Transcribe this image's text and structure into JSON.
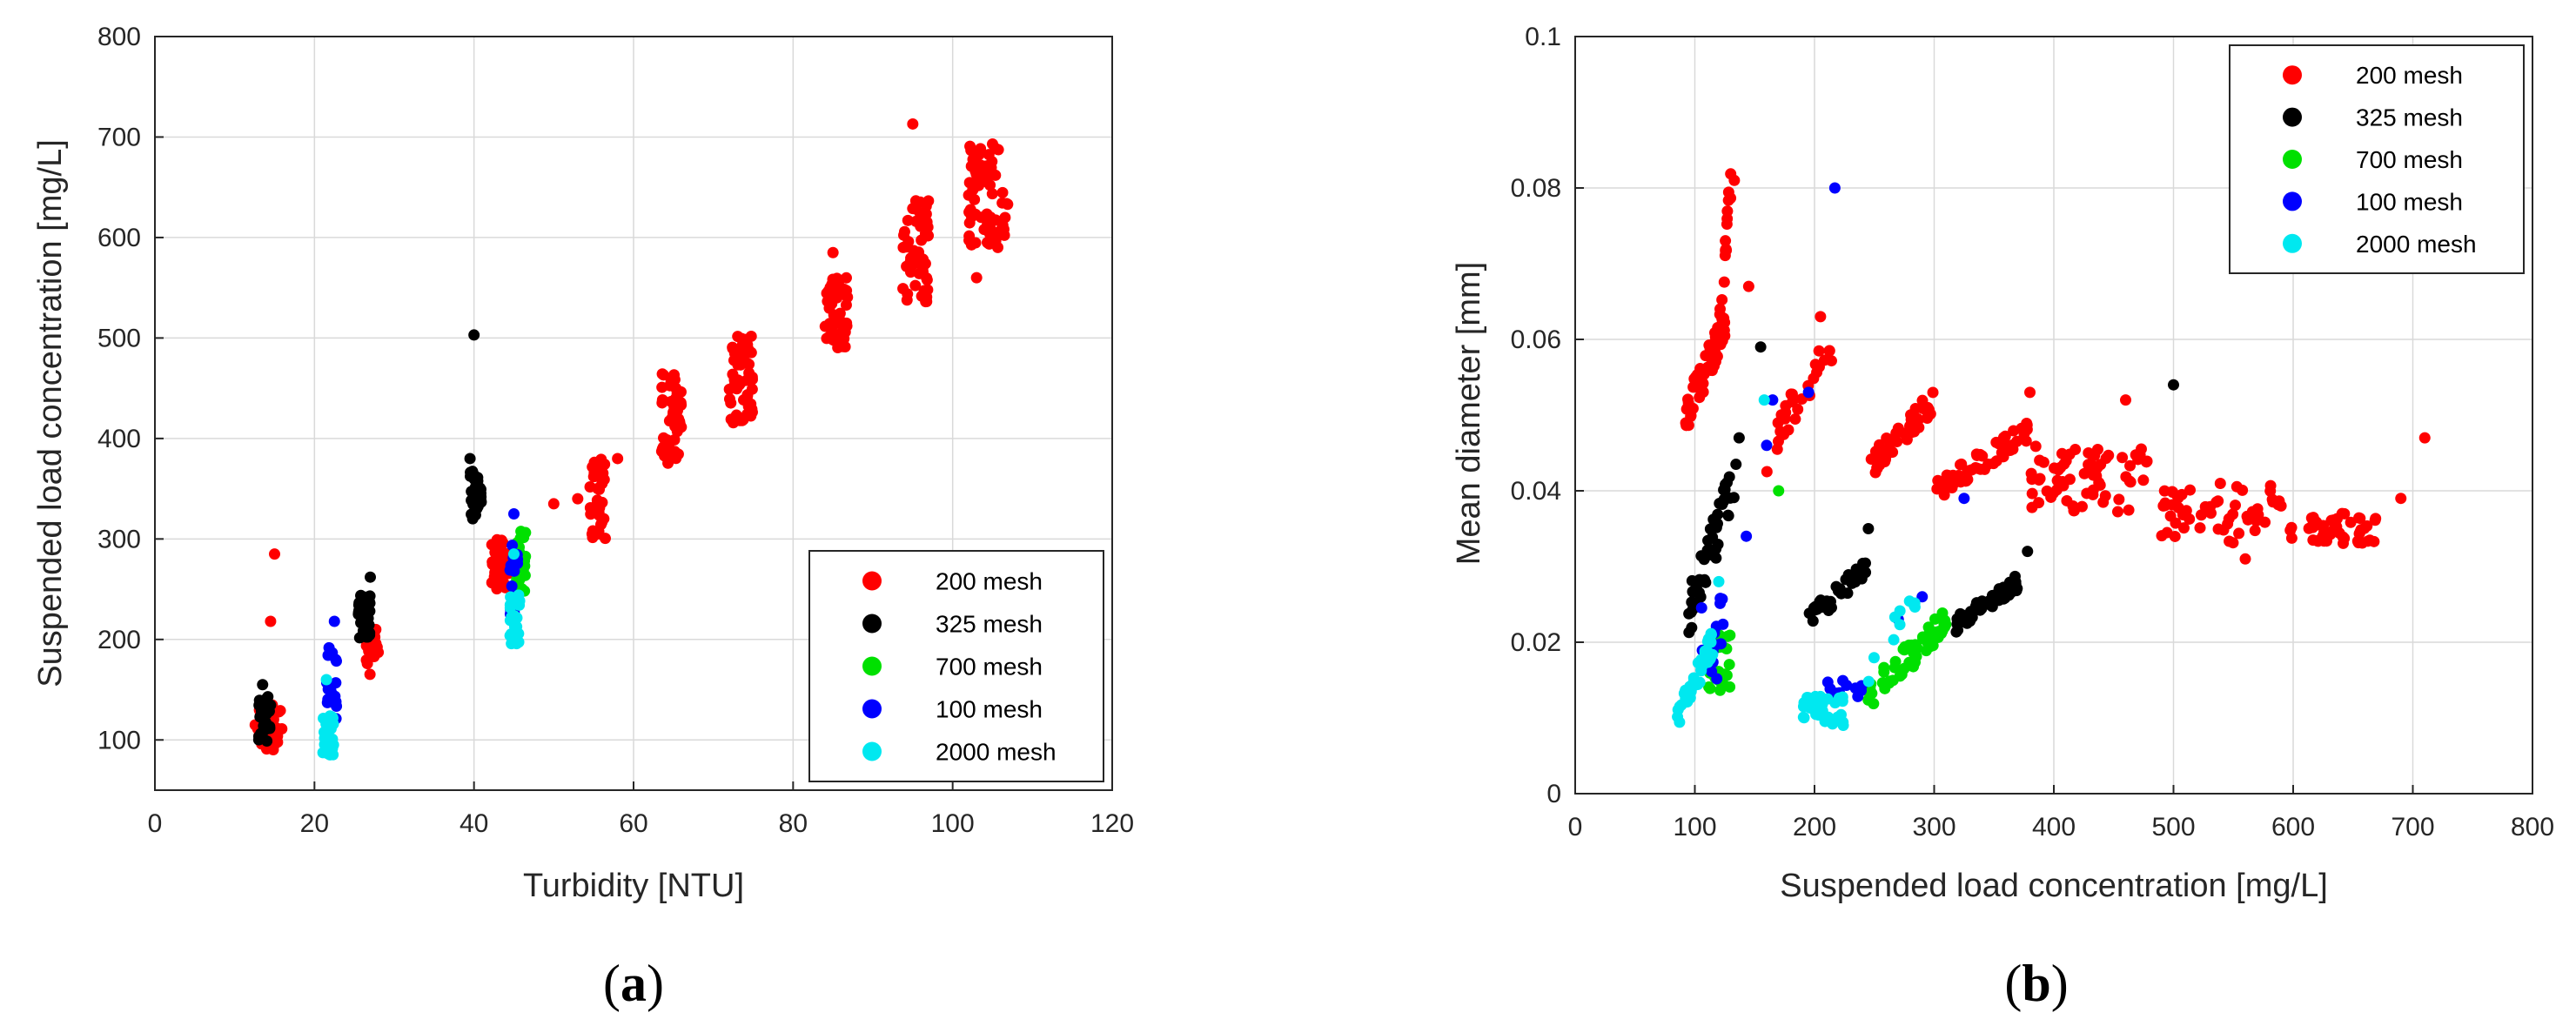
{
  "chart_data": [
    {
      "type": "scatter",
      "panel": "a",
      "caption_open": "(",
      "caption_letter": "a",
      "caption_close": ")",
      "xlabel": "Turbidity [NTU]",
      "ylabel": "Suspended load concentration [mg/L]",
      "xlim": [
        0,
        120
      ],
      "ylim": [
        50,
        800
      ],
      "xticks": [
        0,
        20,
        40,
        60,
        80,
        100,
        120
      ],
      "yticks": [
        100,
        200,
        300,
        400,
        500,
        600,
        700,
        800
      ],
      "grid": true,
      "legend_position": "bottom-right",
      "series": [
        {
          "name": "200 mesh",
          "color": "#ff0000",
          "clusters": [
            {
              "x": [
                12.5,
                16
              ],
              "y": [
                90,
                135
              ],
              "n": 40
            },
            {
              "x": [
                26.5,
                28
              ],
              "y": [
                165,
                210
              ],
              "n": 25
            },
            {
              "x": [
                42,
                44.5
              ],
              "y": [
                250,
                300
              ],
              "n": 35
            },
            {
              "x": [
                54.5,
                56.5
              ],
              "y": [
                298,
                380
              ],
              "n": 40
            },
            {
              "x": [
                63.5,
                66
              ],
              "y": [
                375,
                465
              ],
              "n": 50
            },
            {
              "x": [
                72,
                75
              ],
              "y": [
                415,
                505
              ],
              "n": 55
            },
            {
              "x": [
                84,
                87
              ],
              "y": [
                490,
                560
              ],
              "n": 50
            },
            {
              "x": [
                93.5,
                97
              ],
              "y": [
                535,
                640
              ],
              "n": 55
            },
            {
              "x": [
                102,
                107
              ],
              "y": [
                590,
                700
              ],
              "n": 70
            }
          ],
          "points": [
            [
              15,
              285
            ],
            [
              14.5,
              218
            ],
            [
              50,
              335
            ],
            [
              53,
              340
            ],
            [
              58,
              380
            ],
            [
              95,
              713
            ],
            [
              85,
              585
            ],
            [
              103,
              560
            ]
          ]
        },
        {
          "name": "325 mesh",
          "color": "#000000",
          "clusters": [
            {
              "x": [
                13,
                14.5
              ],
              "y": [
                98,
                145
              ],
              "n": 30
            },
            {
              "x": [
                25.5,
                27
              ],
              "y": [
                200,
                245
              ],
              "n": 40
            },
            {
              "x": [
                39.5,
                41
              ],
              "y": [
                320,
                370
              ],
              "n": 35
            }
          ],
          "points": [
            [
              13.5,
              155
            ],
            [
              27,
              262
            ],
            [
              40,
              503
            ],
            [
              39.5,
              380
            ]
          ]
        },
        {
          "name": "700 mesh",
          "color": "#00e000",
          "clusters": [
            {
              "x": [
                45,
                46.5
              ],
              "y": [
                245,
                310
              ],
              "n": 30
            }
          ],
          "points": []
        },
        {
          "name": "100 mesh",
          "color": "#0000ff",
          "clusters": [
            {
              "x": [
                21.5,
                22.8
              ],
              "y": [
                115,
                195
              ],
              "n": 18
            },
            {
              "x": [
                44.5,
                45.5
              ],
              "y": [
                220,
                300
              ],
              "n": 15
            }
          ],
          "points": [
            [
              22.5,
              218
            ],
            [
              45,
              325
            ]
          ]
        },
        {
          "name": "2000 mesh",
          "color": "#00e8f0",
          "clusters": [
            {
              "x": [
                21,
                22.5
              ],
              "y": [
                85,
                125
              ],
              "n": 30
            },
            {
              "x": [
                44.5,
                45.8
              ],
              "y": [
                195,
                245
              ],
              "n": 25
            }
          ],
          "points": [
            [
              21.5,
              160
            ],
            [
              45,
              285
            ]
          ]
        }
      ]
    },
    {
      "type": "scatter",
      "panel": "b",
      "caption_open": "(",
      "caption_letter": "b",
      "caption_close": ")",
      "xlabel": "Suspended load concentration [mg/L]",
      "ylabel": "Mean diameter [mm]",
      "xlim": [
        0,
        800
      ],
      "ylim": [
        0,
        0.1
      ],
      "xticks": [
        0,
        100,
        200,
        300,
        400,
        500,
        600,
        700,
        800
      ],
      "yticks": [
        0,
        0.02,
        0.04,
        0.06,
        0.08,
        0.1
      ],
      "grid": true,
      "legend_position": "top-right",
      "series": [
        {
          "name": "200 mesh",
          "color": "#ff0000",
          "clusters": [
            {
              "x": [
                90,
                125
              ],
              "y": [
                0.049,
                0.062
              ],
              "n": 70,
              "slope": true
            },
            {
              "x": [
                120,
                130
              ],
              "y": [
                0.062,
                0.08
              ],
              "n": 18,
              "slope": true
            },
            {
              "x": [
                160,
                215
              ],
              "y": [
                0.045,
                0.06
              ],
              "n": 30,
              "slope": true
            },
            {
              "x": [
                245,
                300
              ],
              "y": [
                0.043,
                0.052
              ],
              "n": 45,
              "slope": true
            },
            {
              "x": [
                300,
                380
              ],
              "y": [
                0.04,
                0.048
              ],
              "n": 60,
              "slope": true
            },
            {
              "x": [
                380,
                480
              ],
              "y": [
                0.037,
                0.046
              ],
              "n": 70
            },
            {
              "x": [
                490,
                600
              ],
              "y": [
                0.033,
                0.041
              ],
              "n": 60
            },
            {
              "x": [
                610,
                670
              ],
              "y": [
                0.033,
                0.037
              ],
              "n": 45
            }
          ],
          "points": [
            [
              133,
              0.081
            ],
            [
              205,
              0.063
            ],
            [
              145,
              0.067
            ],
            [
              710,
              0.047
            ],
            [
              690,
              0.039
            ],
            [
              460,
              0.052
            ],
            [
              560,
              0.031
            ],
            [
              380,
              0.053
            ]
          ]
        },
        {
          "name": "325 mesh",
          "color": "#000000",
          "clusters": [
            {
              "x": [
                95,
                135
              ],
              "y": [
                0.024,
                0.042
              ],
              "n": 45,
              "slope": true
            },
            {
              "x": [
                195,
                245
              ],
              "y": [
                0.023,
                0.03
              ],
              "n": 35,
              "slope": true
            },
            {
              "x": [
                315,
                370
              ],
              "y": [
                0.022,
                0.028
              ],
              "n": 45,
              "slope": true
            }
          ],
          "points": [
            [
              500,
              0.054
            ],
            [
              155,
              0.059
            ],
            [
              137,
              0.047
            ],
            [
              245,
              0.035
            ],
            [
              378,
              0.032
            ]
          ]
        },
        {
          "name": "700 mesh",
          "color": "#00e000",
          "clusters": [
            {
              "x": [
                110,
                130
              ],
              "y": [
                0.013,
                0.021
              ],
              "n": 30
            },
            {
              "x": [
                240,
                310
              ],
              "y": [
                0.012,
                0.023
              ],
              "n": 60,
              "slope": true
            }
          ],
          "points": [
            [
              170,
              0.04
            ]
          ]
        },
        {
          "name": "100 mesh",
          "color": "#0000ff",
          "clusters": [
            {
              "x": [
                105,
                125
              ],
              "y": [
                0.014,
                0.027
              ],
              "n": 15
            },
            {
              "x": [
                210,
                240
              ],
              "y": [
                0.012,
                0.015
              ],
              "n": 12
            }
          ],
          "points": [
            [
              217,
              0.08
            ],
            [
              165,
              0.052
            ],
            [
              195,
              0.053
            ],
            [
              160,
              0.046
            ],
            [
              143,
              0.034
            ],
            [
              325,
              0.039
            ],
            [
              290,
              0.026
            ],
            [
              270,
              0.023
            ]
          ]
        },
        {
          "name": "2000 mesh",
          "color": "#00e8f0",
          "clusters": [
            {
              "x": [
                85,
                115
              ],
              "y": [
                0.01,
                0.02
              ],
              "n": 45,
              "slope": true
            },
            {
              "x": [
                190,
                225
              ],
              "y": [
                0.009,
                0.013
              ],
              "n": 35
            },
            {
              "x": [
                245,
                285
              ],
              "y": [
                0.015,
                0.027
              ],
              "n": 10,
              "slope": true
            }
          ],
          "points": [
            [
              158,
              0.052
            ],
            [
              120,
              0.028
            ]
          ]
        }
      ]
    }
  ]
}
